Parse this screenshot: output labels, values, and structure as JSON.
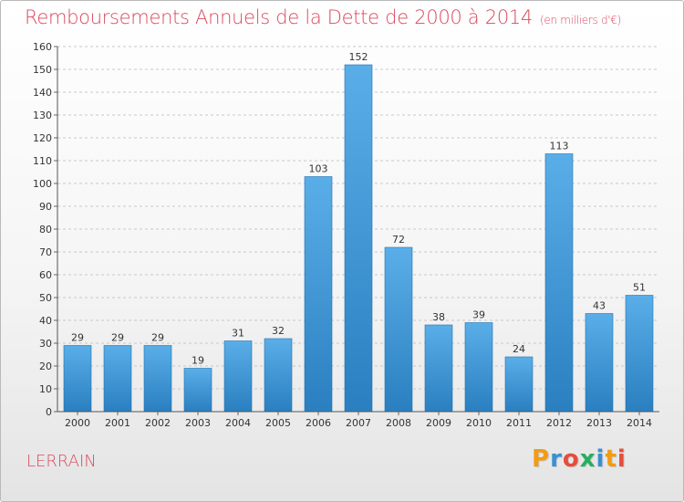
{
  "header": {
    "title": "Remboursements Annuels de la Dette de 2000 à 2014",
    "subtitle": "(en milliers d'€)"
  },
  "footer": {
    "commune": "LERRAIN",
    "logo_text": "Proxiti"
  },
  "colors": {
    "title": "#d9495e",
    "bar_light": "#5aaee8",
    "bar_dark": "#2a7fc0",
    "logo": [
      "#f39c12",
      "#3b8fd4",
      "#e74c3c",
      "#27ae60",
      "#3b8fd4",
      "#f39c12",
      "#e74c3c"
    ]
  },
  "chart_data": {
    "type": "bar",
    "categories": [
      "2000",
      "2001",
      "2002",
      "2003",
      "2004",
      "2005",
      "2006",
      "2007",
      "2008",
      "2009",
      "2010",
      "2011",
      "2012",
      "2013",
      "2014"
    ],
    "values": [
      29,
      29,
      29,
      19,
      31,
      32,
      103,
      152,
      72,
      38,
      39,
      24,
      113,
      43,
      51
    ],
    "ylim": [
      0,
      160
    ],
    "yticks": [
      0,
      10,
      20,
      30,
      40,
      50,
      60,
      70,
      80,
      90,
      100,
      110,
      120,
      130,
      140,
      150,
      160
    ],
    "grid": true,
    "data_labels": true,
    "legend": "none"
  }
}
